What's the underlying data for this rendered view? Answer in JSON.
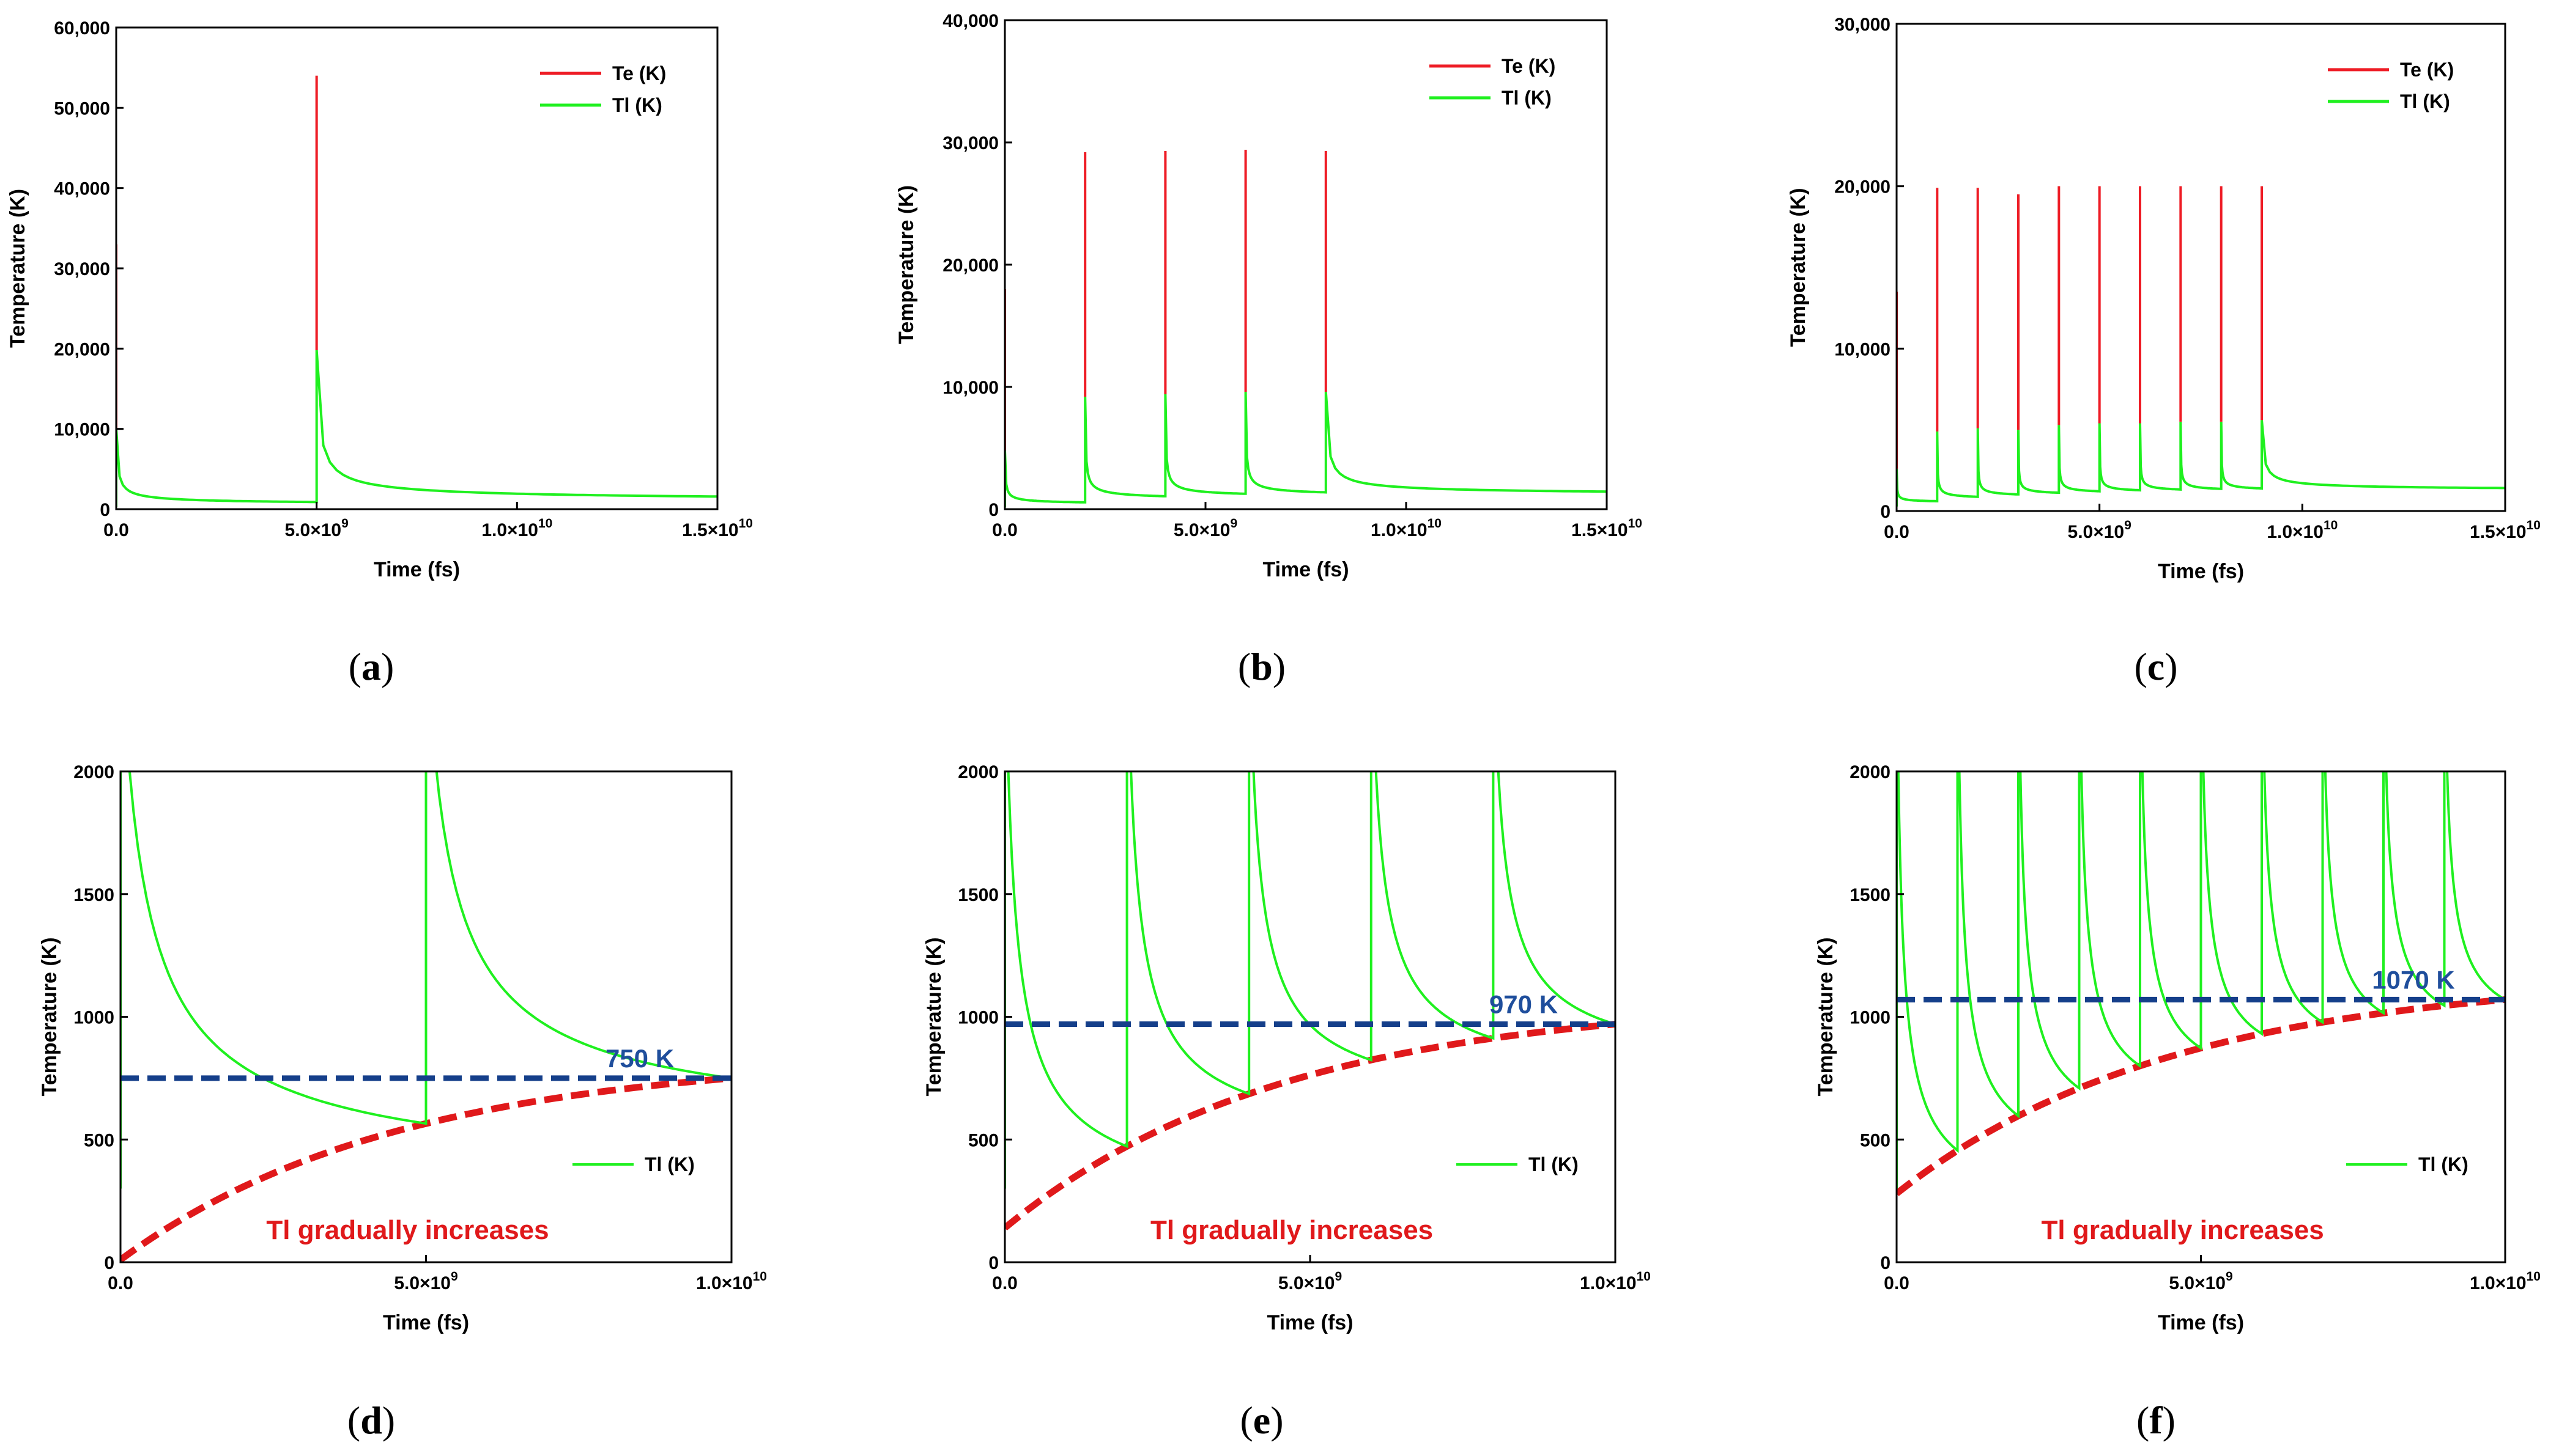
{
  "colors": {
    "te": "#ee1c25",
    "tl": "#1ff01f",
    "dash_blue": "#153f8a",
    "dash_red": "#e0191b",
    "axis": "#000000"
  },
  "chart_data": [
    {
      "id": "a",
      "type": "line",
      "panel_label": "a",
      "xlabel": "Time (fs)",
      "ylabel": "Temperature (K)",
      "xlim": [
        0,
        15000000000
      ],
      "ylim": [
        0,
        60000
      ],
      "xticks": [
        0,
        5000000000,
        10000000000,
        15000000000
      ],
      "xtick_labels": [
        "0.0",
        "5.0×10",
        "1.0×10",
        "1.5×10"
      ],
      "xtick_exps": [
        "",
        "9",
        "10",
        "10"
      ],
      "yticks": [
        0,
        10000,
        20000,
        30000,
        40000,
        50000,
        60000
      ],
      "ytick_labels": [
        "0",
        "10,000",
        "20,000",
        "30,000",
        "40,000",
        "50,000",
        "60,000"
      ],
      "legend": [
        "Te (K)",
        "Tl  (K)"
      ],
      "legend_position": "top-right",
      "pulse_times": [
        0,
        5000000000
      ],
      "te_peaks": [
        33000,
        54000
      ],
      "tl_peaks": [
        10000,
        19800
      ],
      "tl_baseline_start": 300,
      "tl_final": 750,
      "t_end": 15000000000
    },
    {
      "id": "b",
      "type": "line",
      "panel_label": "b",
      "xlabel": "Time (fs)",
      "ylabel": "Temperature (K)",
      "xlim": [
        0,
        15000000000
      ],
      "ylim": [
        0,
        40000
      ],
      "xticks": [
        0,
        5000000000,
        10000000000,
        15000000000
      ],
      "xtick_labels": [
        "0.0",
        "5.0×10",
        "1.0×10",
        "1.5×10"
      ],
      "xtick_exps": [
        "",
        "9",
        "10",
        "10"
      ],
      "yticks": [
        0,
        10000,
        20000,
        30000,
        40000
      ],
      "ytick_labels": [
        "0",
        "10,000",
        "20,000",
        "30,000",
        "40,000"
      ],
      "legend": [
        "Te (K)",
        "Tl  (K)"
      ],
      "legend_position": "top-right",
      "pulse_times": [
        0,
        2000000000,
        4000000000,
        6000000000,
        8000000000
      ],
      "te_peaks": [
        18000,
        29200,
        29300,
        29400,
        29300
      ],
      "tl_peaks": [
        4800,
        9200,
        9400,
        9600,
        9600
      ],
      "tl_baseline_start": 150,
      "tl_final": 970,
      "t_end": 15000000000
    },
    {
      "id": "c",
      "type": "line",
      "panel_label": "c",
      "xlabel": "Time (fs)",
      "ylabel": "Temperature (K)",
      "xlim": [
        0,
        15000000000
      ],
      "ylim": [
        0,
        30000
      ],
      "xticks": [
        0,
        5000000000,
        10000000000,
        15000000000
      ],
      "xtick_labels": [
        "0.0",
        "5.0×10",
        "1.0×10",
        "1.5×10"
      ],
      "xtick_exps": [
        "",
        "9",
        "10",
        "10"
      ],
      "yticks": [
        0,
        10000,
        20000,
        30000
      ],
      "ytick_labels": [
        "0",
        "10,000",
        "20,000",
        "30,000"
      ],
      "legend": [
        "Te (K)",
        "Tl  (K)"
      ],
      "legend_position": "top-right",
      "pulse_times": [
        0,
        1000000000,
        2000000000,
        3000000000,
        4000000000,
        5000000000,
        6000000000,
        7000000000,
        8000000000,
        9000000000
      ],
      "te_peaks": [
        13500,
        19900,
        19900,
        19500,
        20000,
        20000,
        20000,
        20000,
        20000,
        20000
      ],
      "tl_peaks": [
        2600,
        4900,
        5100,
        5000,
        5300,
        5400,
        5400,
        5500,
        5500,
        5600
      ],
      "tl_baseline_start": 280,
      "tl_final": 1070,
      "t_end": 15000000000
    },
    {
      "id": "d",
      "type": "line",
      "panel_label": "d",
      "xlabel": "Time (fs)",
      "ylabel": "Temperature (K)",
      "xlim": [
        0,
        10000000000
      ],
      "ylim": [
        0,
        2000
      ],
      "xticks": [
        0,
        5000000000,
        10000000000
      ],
      "xtick_labels": [
        "0.0",
        "5.0×10",
        "1.0×10"
      ],
      "xtick_exps": [
        "",
        "9",
        "10"
      ],
      "yticks": [
        0,
        500,
        1000,
        1500,
        2000
      ],
      "ytick_labels": [
        "0",
        "500",
        "1000",
        "1500",
        "2000"
      ],
      "legend": [
        "Tl  (K)"
      ],
      "legend_position": "lower-right",
      "pulse_times": [
        0,
        5000000000
      ],
      "tl_baseline_start": 10,
      "tl_final": 750,
      "dashed_level": 750,
      "dashed_label": "750 K",
      "annotation": "Tl gradually increases"
    },
    {
      "id": "e",
      "type": "line",
      "panel_label": "e",
      "xlabel": "Time (fs)",
      "ylabel": "Temperature (K)",
      "xlim": [
        0,
        10000000000
      ],
      "ylim": [
        0,
        2000
      ],
      "xticks": [
        0,
        5000000000,
        10000000000
      ],
      "xtick_labels": [
        "0.0",
        "5.0×10",
        "1.0×10"
      ],
      "xtick_exps": [
        "",
        "9",
        "10"
      ],
      "yticks": [
        0,
        500,
        1000,
        1500,
        2000
      ],
      "ytick_labels": [
        "0",
        "500",
        "1000",
        "1500",
        "2000"
      ],
      "legend": [
        "Tl  (K)"
      ],
      "legend_position": "lower-right",
      "pulse_times": [
        0,
        2000000000,
        4000000000,
        6000000000,
        8000000000
      ],
      "tl_baseline_start": 140,
      "tl_final": 970,
      "dashed_level": 970,
      "dashed_label": "970 K",
      "annotation": "Tl gradually increases"
    },
    {
      "id": "f",
      "type": "line",
      "panel_label": "f",
      "xlabel": "Time (fs)",
      "ylabel": "Temperature (K)",
      "xlim": [
        0,
        10000000000
      ],
      "ylim": [
        0,
        2000
      ],
      "xticks": [
        0,
        5000000000,
        10000000000
      ],
      "xtick_labels": [
        "0.0",
        "5.0×10",
        "1.0×10"
      ],
      "xtick_exps": [
        "",
        "9",
        "10"
      ],
      "yticks": [
        0,
        500,
        1000,
        1500,
        2000
      ],
      "ytick_labels": [
        "0",
        "500",
        "1000",
        "1500",
        "2000"
      ],
      "legend": [
        "Tl  (K)"
      ],
      "legend_position": "lower-right",
      "pulse_times": [
        0,
        1000000000,
        2000000000,
        3000000000,
        4000000000,
        5000000000,
        6000000000,
        7000000000,
        8000000000,
        9000000000
      ],
      "tl_baseline_start": 280,
      "tl_final": 1070,
      "dashed_level": 1070,
      "dashed_label": "1070 K",
      "annotation": "Tl gradually increases"
    }
  ]
}
